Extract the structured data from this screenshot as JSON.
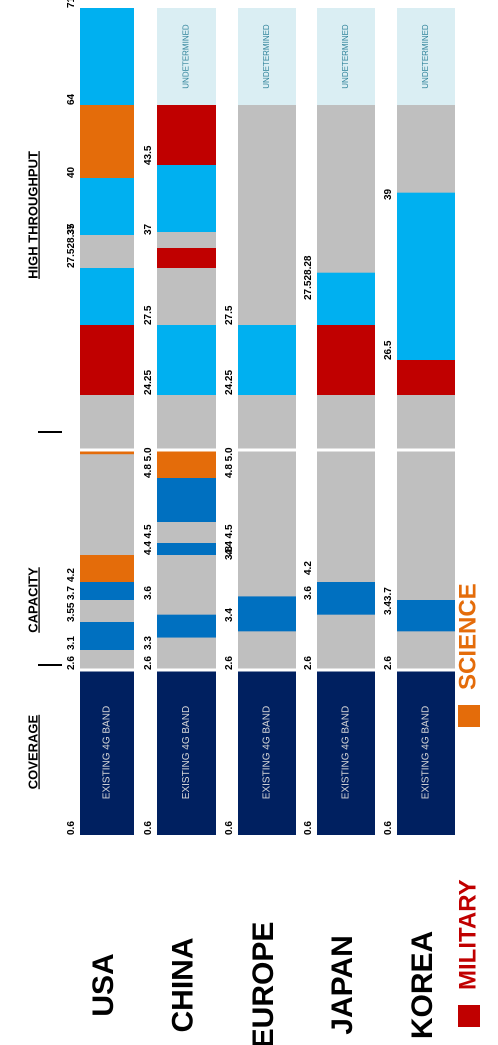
{
  "chart_data": {
    "type": "bar",
    "orientation": "rotated-90",
    "units_note": "",
    "legend": [
      {
        "name": "MILITARY",
        "color": "#c00000"
      },
      {
        "name": "SCIENCE",
        "color": "#e46c0a"
      }
    ],
    "sections": [
      {
        "label": "COVERAGE",
        "from": 0.6,
        "to": 2.6
      },
      {
        "label": "CAPACITY",
        "from": 2.6,
        "to": 6.0
      },
      {
        "label": "HIGH THROUGHPUT",
        "from": 6.0,
        "to": 71
      }
    ],
    "colors": {
      "existing": "#002060",
      "unallocated": "#bfbfbf",
      "licensed_light": "#00b0f0",
      "licensed_mid": "#0070c0",
      "military": "#c00000",
      "science": "#e46c0a",
      "undetermined": "#daeef3",
      "undetermined_text": "#31849b"
    },
    "countries": [
      {
        "name": "USA",
        "segments": [
          {
            "from": 0.6,
            "to": 2.6,
            "kind": "existing",
            "text": "EXISTING 4G BAND"
          },
          {
            "from": 3.1,
            "to": 3.55,
            "kind": "licensed_mid"
          },
          {
            "from": 3.7,
            "to": 4.2,
            "kind": "licensed_mid"
          },
          {
            "from": 4.2,
            "to": 4.4,
            "kind": "science"
          },
          {
            "from": 5.85,
            "to": 6.0,
            "kind": "science"
          },
          {
            "from": 24.25,
            "to": 27.5,
            "kind": "military"
          },
          {
            "from": 27.5,
            "to": 28.35,
            "kind": "licensed_light"
          },
          {
            "from": 37,
            "to": 40,
            "kind": "licensed_light"
          },
          {
            "from": 40,
            "to": 64,
            "kind": "science"
          },
          {
            "from": 64,
            "to": 71,
            "kind": "licensed_light"
          }
        ],
        "ticks": [
          "0.6",
          "2.6",
          "3.1",
          "3.55",
          "3.7",
          "4.2",
          "27.528.35",
          "37",
          "40",
          "64",
          "71"
        ]
      },
      {
        "name": "CHINA",
        "segments": [
          {
            "from": 0.6,
            "to": 2.6,
            "kind": "existing",
            "text": "EXISTING 4G BAND"
          },
          {
            "from": 3.3,
            "to": 3.6,
            "kind": "licensed_mid"
          },
          {
            "from": 4.4,
            "to": 4.5,
            "kind": "licensed_mid"
          },
          {
            "from": 4.8,
            "to": 5.0,
            "kind": "licensed_mid"
          },
          {
            "from": 5.0,
            "to": 6.0,
            "kind": "science"
          },
          {
            "from": 24.25,
            "to": 27.5,
            "kind": "licensed_light"
          },
          {
            "from": 37,
            "to": 38,
            "kind": "military"
          },
          {
            "from": 38.5,
            "to": 43.5,
            "kind": "licensed_light"
          },
          {
            "from": 43.5,
            "to": 64,
            "kind": "military"
          },
          {
            "from": 64,
            "to": 71,
            "kind": "undetermined",
            "text": "UNDETERMINED"
          }
        ],
        "ticks": [
          "0.6",
          "2.6",
          "3.3",
          "3.6",
          "4.4 4.5",
          "4.8 5.0",
          "24.25",
          "27.5",
          "37",
          "43.5"
        ]
      },
      {
        "name": "EUROPE",
        "segments": [
          {
            "from": 0.6,
            "to": 2.6,
            "kind": "existing",
            "text": "EXISTING 4G BAND"
          },
          {
            "from": 3.4,
            "to": 3.8,
            "kind": "licensed_mid"
          },
          {
            "from": 24.25,
            "to": 27.5,
            "kind": "licensed_light"
          },
          {
            "from": 64,
            "to": 71,
            "kind": "undetermined",
            "text": "UNDETERMINED"
          }
        ],
        "ticks": [
          "0.6",
          "2.6",
          "3.4",
          "3.8",
          "4.4 4.5",
          "4.8 5.0",
          "24.25",
          "27.5"
        ]
      },
      {
        "name": "JAPAN",
        "segments": [
          {
            "from": 0.6,
            "to": 2.6,
            "kind": "existing",
            "text": "EXISTING 4G BAND"
          },
          {
            "from": 3.6,
            "to": 4.2,
            "kind": "licensed_mid"
          },
          {
            "from": 24.25,
            "to": 27.5,
            "kind": "military"
          },
          {
            "from": 27.5,
            "to": 28.28,
            "kind": "licensed_light"
          },
          {
            "from": 64,
            "to": 71,
            "kind": "undetermined",
            "text": "UNDETERMINED"
          }
        ],
        "ticks": [
          "0.6",
          "2.6",
          "3.6",
          "4.2",
          "27.528.28"
        ]
      },
      {
        "name": "KOREA",
        "segments": [
          {
            "from": 0.6,
            "to": 2.6,
            "kind": "existing",
            "text": "EXISTING 4G BAND"
          },
          {
            "from": 3.4,
            "to": 3.7,
            "kind": "licensed_mid"
          },
          {
            "from": 24.25,
            "to": 26.5,
            "kind": "military"
          },
          {
            "from": 26.5,
            "to": 39,
            "kind": "licensed_light"
          },
          {
            "from": 64,
            "to": 71,
            "kind": "undetermined",
            "text": "UNDETERMINED"
          }
        ],
        "ticks": [
          "0.6",
          "2.6",
          "3.43.7",
          "26.5",
          "39"
        ]
      }
    ]
  }
}
